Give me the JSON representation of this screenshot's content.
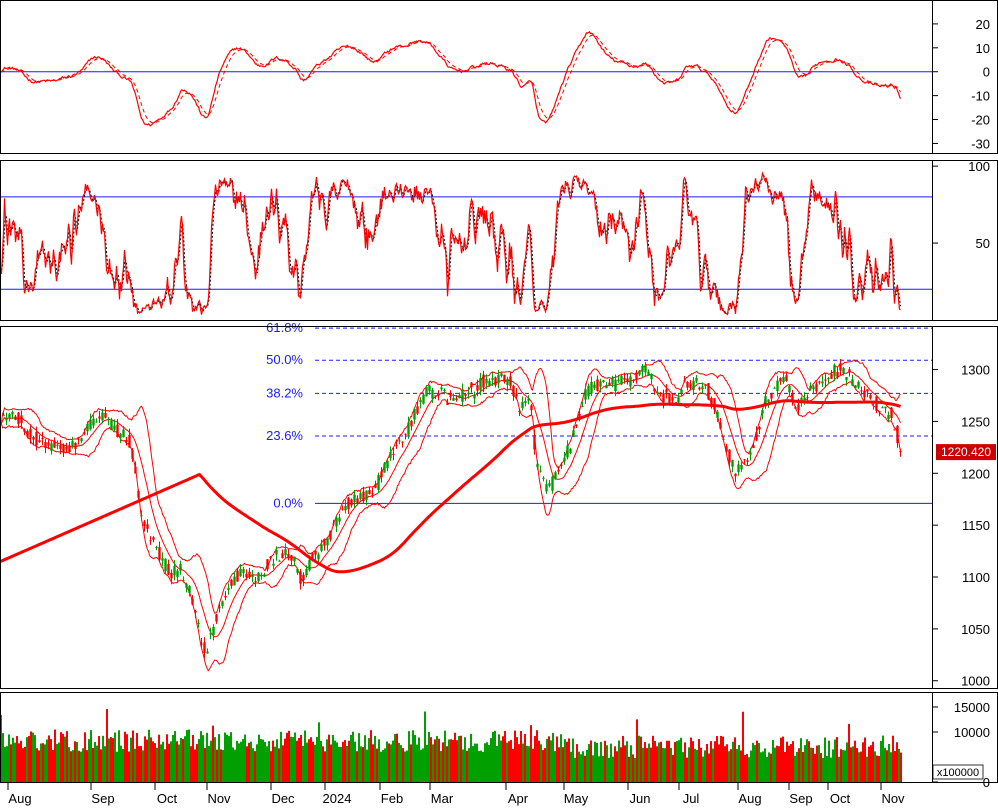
{
  "chart_data": [
    {
      "type": "line",
      "panel": "macd",
      "series": [
        {
          "values": []
        },
        {
          "values": []
        }
      ],
      "yticks": [
        20,
        10,
        0,
        -10,
        -20,
        -30
      ],
      "ylim": [
        -34,
        30
      ],
      "reference_lines": [
        0
      ]
    },
    {
      "type": "line",
      "panel": "stochastic",
      "series": [
        {
          "values": []
        },
        {
          "values": []
        }
      ],
      "yticks": [
        100,
        50
      ],
      "ylim": [
        0,
        104
      ],
      "reference_lines": [
        80,
        20
      ]
    },
    {
      "type": "candlestick",
      "panel": "price",
      "ylim": [
        993,
        1342
      ],
      "yticks": [
        1300,
        1250,
        1200,
        1150,
        1100,
        1050,
        1000
      ],
      "last_price": "1220.420",
      "fibonacci_levels": [
        {
          "label": "61.8%",
          "value": 1340
        },
        {
          "label": "50.0%",
          "value": 1309
        },
        {
          "label": "38.2%",
          "value": 1277
        },
        {
          "label": "23.6%",
          "value": 1236
        },
        {
          "label": "0.0%",
          "value": 1171
        }
      ],
      "anchor_points": [
        [
          0,
          1255
        ],
        [
          15,
          1252
        ],
        [
          30,
          1237
        ],
        [
          40,
          1232
        ],
        [
          50,
          1226
        ],
        [
          60,
          1225
        ],
        [
          70,
          1225
        ],
        [
          80,
          1229
        ],
        [
          90,
          1250
        ],
        [
          100,
          1255
        ],
        [
          110,
          1246
        ],
        [
          120,
          1240
        ],
        [
          130,
          1228
        ],
        [
          140,
          1164
        ],
        [
          150,
          1140
        ],
        [
          160,
          1120
        ],
        [
          170,
          1105
        ],
        [
          180,
          1110
        ],
        [
          190,
          1085
        ],
        [
          200,
          1040
        ],
        [
          205,
          1025
        ],
        [
          215,
          1060
        ],
        [
          225,
          1080
        ],
        [
          235,
          1100
        ],
        [
          245,
          1105
        ],
        [
          255,
          1098
        ],
        [
          265,
          1108
        ],
        [
          275,
          1120
        ],
        [
          285,
          1122
        ],
        [
          295,
          1115
        ],
        [
          300,
          1098
        ],
        [
          310,
          1115
        ],
        [
          320,
          1125
        ],
        [
          330,
          1140
        ],
        [
          340,
          1160
        ],
        [
          350,
          1175
        ],
        [
          360,
          1180
        ],
        [
          370,
          1178
        ],
        [
          380,
          1195
        ],
        [
          390,
          1215
        ],
        [
          400,
          1230
        ],
        [
          410,
          1250
        ],
        [
          420,
          1270
        ],
        [
          430,
          1280
        ],
        [
          440,
          1277
        ],
        [
          450,
          1270
        ],
        [
          460,
          1273
        ],
        [
          470,
          1278
        ],
        [
          480,
          1285
        ],
        [
          490,
          1290
        ],
        [
          500,
          1290
        ],
        [
          510,
          1287
        ],
        [
          520,
          1262
        ],
        [
          530,
          1270
        ],
        [
          535,
          1210
        ],
        [
          545,
          1185
        ],
        [
          555,
          1195
        ],
        [
          565,
          1215
        ],
        [
          575,
          1240
        ],
        [
          585,
          1280
        ],
        [
          595,
          1285
        ],
        [
          605,
          1283
        ],
        [
          615,
          1287
        ],
        [
          625,
          1290
        ],
        [
          635,
          1293
        ],
        [
          645,
          1300
        ],
        [
          655,
          1283
        ],
        [
          665,
          1273
        ],
        [
          675,
          1270
        ],
        [
          685,
          1288
        ],
        [
          695,
          1287
        ],
        [
          705,
          1280
        ],
        [
          715,
          1265
        ],
        [
          725,
          1225
        ],
        [
          735,
          1200
        ],
        [
          745,
          1210
        ],
        [
          755,
          1235
        ],
        [
          765,
          1270
        ],
        [
          775,
          1285
        ],
        [
          785,
          1290
        ],
        [
          795,
          1260
        ],
        [
          805,
          1270
        ],
        [
          815,
          1285
        ],
        [
          825,
          1293
        ],
        [
          835,
          1300
        ],
        [
          845,
          1298
        ],
        [
          855,
          1288
        ],
        [
          865,
          1275
        ],
        [
          875,
          1265
        ],
        [
          885,
          1258
        ],
        [
          890,
          1255
        ],
        [
          895,
          1245
        ],
        [
          900,
          1220
        ]
      ]
    },
    {
      "type": "bar",
      "panel": "volume",
      "yticks": [
        15000,
        10000,
        0
      ],
      "ylim": [
        0,
        18000
      ],
      "unit_label": "x100000",
      "values": []
    }
  ],
  "x_axis": {
    "months": [
      {
        "label": "Aug",
        "x": 20
      },
      {
        "label": "Sep",
        "x": 103
      },
      {
        "label": "Oct",
        "x": 167
      },
      {
        "label": "Nov",
        "x": 219
      },
      {
        "label": "Dec",
        "x": 283
      },
      {
        "label": "2024",
        "x": 337
      },
      {
        "label": "Feb",
        "x": 392
      },
      {
        "label": "Mar",
        "x": 442
      },
      {
        "label": "Apr",
        "x": 518
      },
      {
        "label": "May",
        "x": 576
      },
      {
        "label": "Jun",
        "x": 640
      },
      {
        "label": "Jul",
        "x": 691
      },
      {
        "label": "Aug",
        "x": 750
      },
      {
        "label": "Sep",
        "x": 801
      },
      {
        "label": "Oct",
        "x": 840
      },
      {
        "label": "Nov",
        "x": 893
      }
    ]
  },
  "colors": {
    "up": "#00a000",
    "down": "#ff0000",
    "indicator": "#ff0000",
    "signal": "#000000",
    "reference": "#1a1aff",
    "grid_border": "#000000",
    "price_tag_bg": "#cc0000"
  }
}
